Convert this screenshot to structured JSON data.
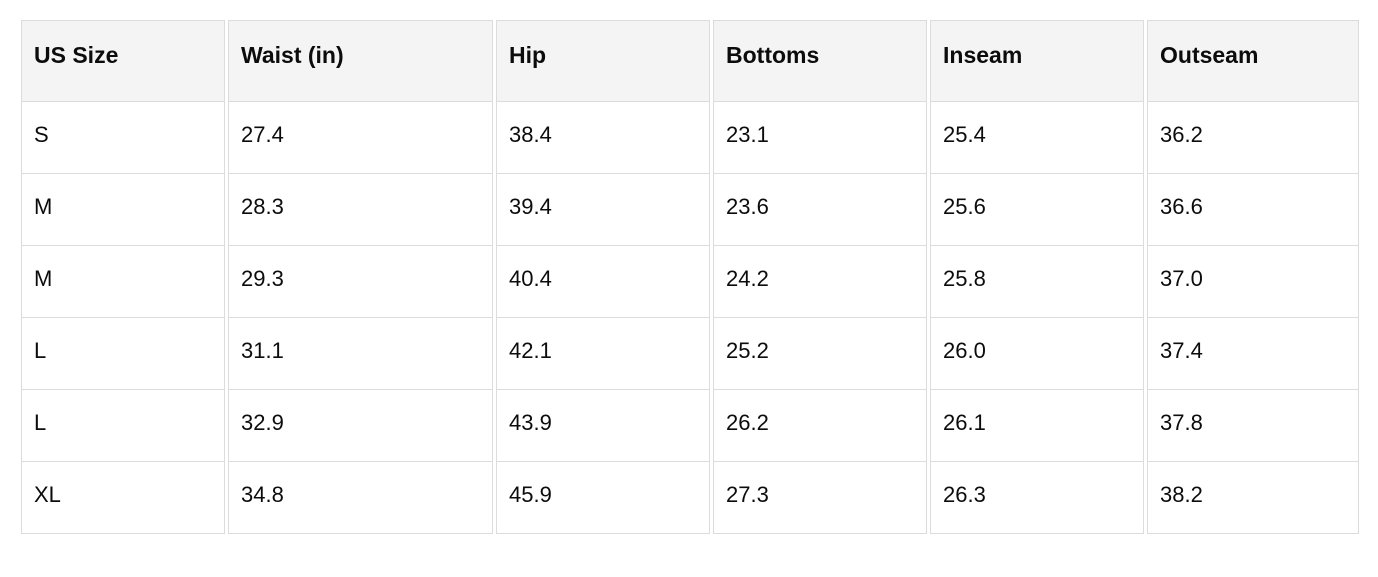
{
  "chart_data": {
    "type": "table",
    "title": "",
    "columns": [
      "US Size",
      "Waist (in)",
      "Hip",
      "Bottoms",
      "Inseam",
      "Outseam"
    ],
    "rows": [
      [
        "S",
        "27.4",
        "38.4",
        "23.1",
        "25.4",
        "36.2"
      ],
      [
        "M",
        "28.3",
        "39.4",
        "23.6",
        "25.6",
        "36.6"
      ],
      [
        "M",
        "29.3",
        "40.4",
        "24.2",
        "25.8",
        "37.0"
      ],
      [
        "L",
        "31.1",
        "42.1",
        "25.2",
        "26.0",
        "37.4"
      ],
      [
        "L",
        "32.9",
        "43.9",
        "26.2",
        "26.1",
        "37.8"
      ],
      [
        "XL",
        "34.8",
        "45.9",
        "27.3",
        "26.3",
        "38.2"
      ]
    ]
  },
  "colors": {
    "header_background": "#f4f4f4",
    "cell_background": "#ffffff",
    "border": "#dcdcdc",
    "text": "#0c0c0c",
    "page_background": "#ffffff"
  }
}
